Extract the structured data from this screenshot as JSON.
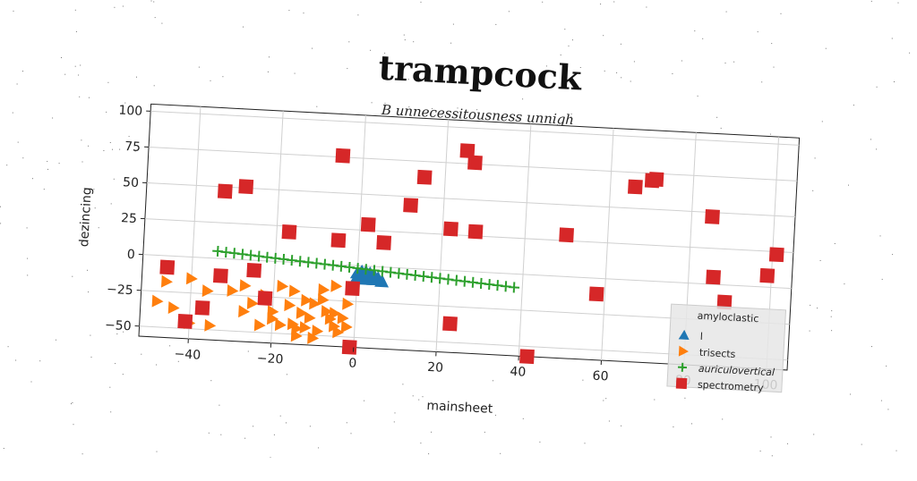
{
  "chart_data": {
    "type": "scatter",
    "title": "trampcock",
    "subtitle": "B unnecessitousness unnigh",
    "xlabel": "mainsheet",
    "ylabel": "dezincing",
    "xlim": [
      -52,
      105
    ],
    "ylim": [
      -57,
      105
    ],
    "xticks": [
      -40,
      -20,
      0,
      20,
      40,
      60,
      80,
      100
    ],
    "yticks": [
      100,
      75,
      50,
      25,
      0,
      -25,
      -50
    ],
    "xtick_labels": [
      "−40",
      "−20",
      "0",
      "20",
      "40",
      "60",
      "80",
      "100"
    ],
    "ytick_labels": [
      "100",
      "75",
      "50",
      "25",
      "0",
      "−25",
      "−50"
    ],
    "grid": true,
    "legend": {
      "title": "amyloclastic",
      "position": "lower-right"
    },
    "series": [
      {
        "name": "l",
        "marker": "triangle-up",
        "color": "#1f77b4",
        "points": [
          [
            0,
            -5
          ],
          [
            1,
            -4
          ],
          [
            2,
            -4
          ],
          [
            3,
            -5
          ],
          [
            4,
            -6
          ],
          [
            1,
            -7
          ],
          [
            2,
            -6
          ],
          [
            3,
            -8
          ],
          [
            4,
            -9
          ],
          [
            5,
            -8
          ],
          [
            6,
            -10
          ],
          [
            0,
            -8
          ],
          [
            2,
            -9
          ]
        ]
      },
      {
        "name": "trisects",
        "marker": "triangle-right",
        "color": "#ff7f0e",
        "points": [
          [
            -46,
            -18
          ],
          [
            -40,
            -15
          ],
          [
            -36,
            -23
          ],
          [
            -30,
            -22
          ],
          [
            -27,
            -18
          ],
          [
            -22,
            -24
          ],
          [
            -18,
            -17
          ],
          [
            -15,
            -20
          ],
          [
            -12,
            -26
          ],
          [
            -8,
            -18
          ],
          [
            -5,
            -15
          ],
          [
            -2,
            -27
          ],
          [
            -48,
            -32
          ],
          [
            -44,
            -36
          ],
          [
            -40,
            -46
          ],
          [
            -35,
            -47
          ],
          [
            -27,
            -36
          ],
          [
            -23,
            -45
          ],
          [
            -20,
            -40
          ],
          [
            -16,
            -30
          ],
          [
            -14,
            -46
          ],
          [
            -11,
            -38
          ],
          [
            -9,
            -47
          ],
          [
            -7,
            -33
          ],
          [
            -5,
            -43
          ],
          [
            -13,
            -35
          ],
          [
            -10,
            -28
          ],
          [
            -12,
            -45
          ],
          [
            -3,
            -37
          ],
          [
            -2,
            -43
          ],
          [
            -5,
            -34
          ],
          [
            -6,
            -38
          ],
          [
            -15,
            -43
          ],
          [
            -18,
            -44
          ],
          [
            -20,
            -35
          ],
          [
            -25,
            -30
          ],
          [
            -8,
            -25
          ],
          [
            -10,
            -52
          ],
          [
            -14,
            -51
          ],
          [
            -4,
            -47
          ]
        ]
      },
      {
        "name": "auriculovertical",
        "marker": "plus",
        "color": "#2ca02c",
        "points": [
          [
            -34,
            5
          ],
          [
            -32,
            4.6
          ],
          [
            -30,
            4.2
          ],
          [
            -28,
            3.8
          ],
          [
            -26,
            3.4
          ],
          [
            -24,
            3
          ],
          [
            -22,
            2.6
          ],
          [
            -20,
            2.2
          ],
          [
            -18,
            1.8
          ],
          [
            -16,
            1.4
          ],
          [
            -14,
            1
          ],
          [
            -12,
            0.6
          ],
          [
            -10,
            0.2
          ],
          [
            -8,
            -0.2
          ],
          [
            -6,
            -0.6
          ],
          [
            -4,
            -1
          ],
          [
            -2,
            -1.4
          ],
          [
            0,
            -1.8
          ],
          [
            2,
            -2.2
          ],
          [
            4,
            -2.6
          ],
          [
            6,
            -3
          ],
          [
            8,
            -3.4
          ],
          [
            10,
            -3.8
          ],
          [
            12,
            -4.2
          ],
          [
            14,
            -4.6
          ],
          [
            16,
            -5
          ],
          [
            18,
            -5.4
          ],
          [
            20,
            -5.8
          ],
          [
            22,
            -6.2
          ],
          [
            24,
            -6.6
          ],
          [
            26,
            -7
          ],
          [
            28,
            -7.4
          ],
          [
            30,
            -7.8
          ],
          [
            32,
            -8.2
          ],
          [
            34,
            -8.6
          ],
          [
            36,
            -9
          ],
          [
            38,
            -9.4
          ]
        ]
      },
      {
        "name": "spectrometry",
        "marker": "square",
        "color": "#d62728",
        "points": [
          [
            -5,
            76
          ],
          [
            15,
            64
          ],
          [
            25,
            84
          ],
          [
            27,
            76
          ],
          [
            -33,
            47
          ],
          [
            -28,
            51
          ],
          [
            12,
            44
          ],
          [
            -17,
            21
          ],
          [
            -5,
            17
          ],
          [
            2,
            29
          ],
          [
            6,
            17
          ],
          [
            22,
            29
          ],
          [
            28,
            28
          ],
          [
            50,
            29
          ],
          [
            66,
            65
          ],
          [
            70,
            70
          ],
          [
            71,
            71
          ],
          [
            85,
            47
          ],
          [
            86,
            5
          ],
          [
            89,
            -12
          ],
          [
            58,
            -11
          ],
          [
            99,
            8
          ],
          [
            101,
            23
          ],
          [
            -46,
            -8
          ],
          [
            -33,
            -12
          ],
          [
            -25,
            -7
          ],
          [
            -22,
            -26
          ],
          [
            -37,
            -35
          ],
          [
            -41,
            -45
          ],
          [
            -1,
            -16
          ],
          [
            23,
            -37
          ],
          [
            42,
            -57
          ],
          [
            -1,
            -57
          ]
        ]
      }
    ]
  }
}
